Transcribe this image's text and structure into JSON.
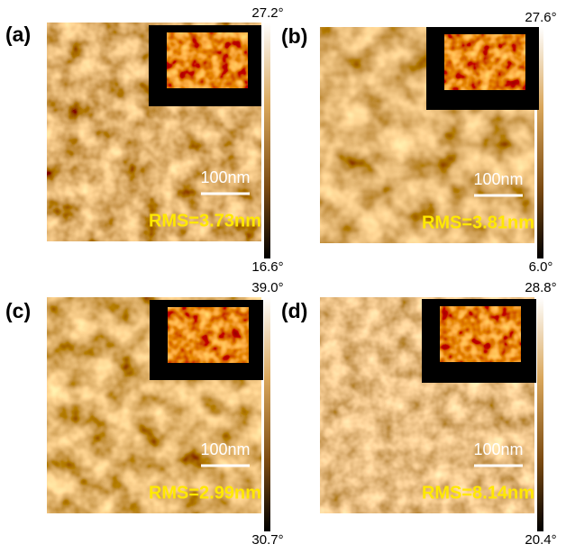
{
  "panels": [
    {
      "label": "(a)",
      "scale_bar": "100nm",
      "rms": "RMS=3.73nm",
      "colorbar_max": "27.2°",
      "colorbar_min": "16.6°"
    },
    {
      "label": "(b)",
      "scale_bar": "100nm",
      "rms": "RMS=3.81nm",
      "colorbar_max": "27.6°",
      "colorbar_min": "6.0°"
    },
    {
      "label": "(c)",
      "scale_bar": "100nm",
      "rms": "RMS=2.99nm",
      "colorbar_max": "39.0°",
      "colorbar_min": "30.7°"
    },
    {
      "label": "(d)",
      "scale_bar": "100nm",
      "rms": "RMS=8.14nm",
      "colorbar_max": "28.8°",
      "colorbar_min": "20.4°"
    }
  ]
}
